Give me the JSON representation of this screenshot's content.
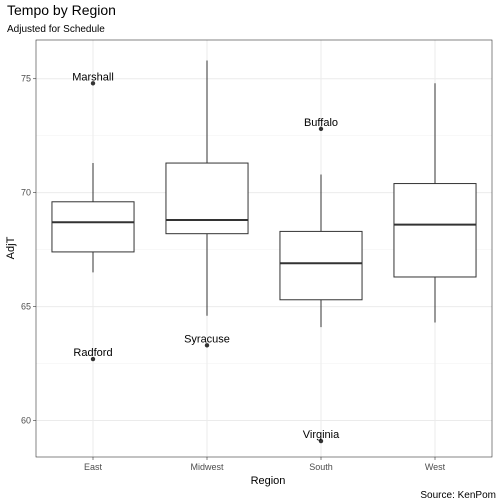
{
  "chart_data": {
    "type": "boxplot",
    "title": "Tempo by Region",
    "subtitle": "Adjusted for Schedule",
    "xlabel": "Region",
    "ylabel": "AdjT",
    "caption": "Source: KenPom",
    "categories": [
      "East",
      "Midwest",
      "South",
      "West"
    ],
    "y_ticks": [
      60,
      65,
      70,
      75
    ],
    "ylim": [
      58.4,
      76.7
    ],
    "grid": true,
    "boxes": [
      {
        "category": "East",
        "q1": 67.4,
        "median": 68.7,
        "q3": 69.6,
        "whisker_low": 66.5,
        "whisker_high": 71.3
      },
      {
        "category": "Midwest",
        "q1": 68.2,
        "median": 68.8,
        "q3": 71.3,
        "whisker_low": 64.6,
        "whisker_high": 75.8
      },
      {
        "category": "South",
        "q1": 65.3,
        "median": 66.9,
        "q3": 68.3,
        "whisker_low": 64.1,
        "whisker_high": 70.8
      },
      {
        "category": "West",
        "q1": 66.3,
        "median": 68.6,
        "q3": 70.4,
        "whisker_low": 64.3,
        "whisker_high": 74.8
      }
    ],
    "outliers": [
      {
        "category": "East",
        "value": 74.8,
        "label": "Marshall"
      },
      {
        "category": "East",
        "value": 62.7,
        "label": "Radford"
      },
      {
        "category": "Midwest",
        "value": 63.3,
        "label": "Syracuse"
      },
      {
        "category": "South",
        "value": 72.8,
        "label": "Buffalo"
      },
      {
        "category": "South",
        "value": 59.1,
        "label": "Virginia"
      }
    ]
  }
}
